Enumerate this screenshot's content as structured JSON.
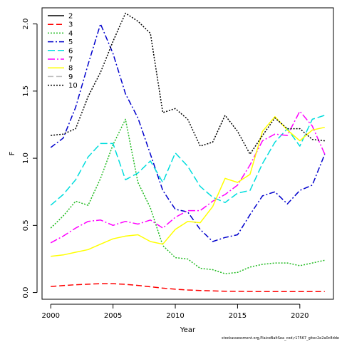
{
  "chart_data": {
    "type": "line",
    "title": "",
    "xlabel": "Year",
    "ylabel": "F",
    "xlim": [
      1999.3,
      2022.7
    ],
    "ylim": [
      -0.05,
      2.12
    ],
    "xticks": [
      2000,
      2005,
      2010,
      2015,
      2020
    ],
    "yticks": [
      0.0,
      0.5,
      1.0,
      1.5,
      2.0
    ],
    "ytick_labels": [
      "0.0",
      "0.5",
      "1.0",
      "1.5",
      "2.0"
    ],
    "grid": false,
    "legend_position": "top-left",
    "x": [
      2000,
      2001,
      2002,
      2003,
      2004,
      2005,
      2006,
      2007,
      2008,
      2009,
      2010,
      2011,
      2012,
      2013,
      2014,
      2015,
      2016,
      2017,
      2018,
      2019,
      2020,
      2021,
      2022
    ],
    "series": [
      {
        "name": "2",
        "color": "#000000",
        "dash": "solid",
        "values": [
          null,
          null,
          null,
          null,
          null,
          null,
          null,
          null,
          null,
          null,
          null,
          null,
          null,
          null,
          null,
          null,
          null,
          null,
          null,
          null,
          null,
          null,
          null
        ]
      },
      {
        "name": "3",
        "color": "#FF0000",
        "dash": "8,4",
        "values": [
          0.045,
          0.052,
          0.058,
          0.062,
          0.066,
          0.066,
          0.061,
          0.053,
          0.043,
          0.033,
          0.025,
          0.019,
          0.015,
          0.012,
          0.01,
          0.009,
          0.008,
          0.007,
          0.007,
          0.007,
          0.007,
          0.007,
          0.007
        ]
      },
      {
        "name": "4",
        "color": "#22BB22",
        "dash": "2,2",
        "values": [
          0.48,
          0.57,
          0.68,
          0.65,
          0.85,
          1.1,
          1.29,
          0.82,
          0.63,
          0.35,
          0.26,
          0.25,
          0.18,
          0.17,
          0.14,
          0.15,
          0.19,
          0.21,
          0.22,
          0.22,
          0.2,
          0.22,
          0.24
        ]
      },
      {
        "name": "5",
        "color": "#0000CC",
        "dash": "8,3,2,3",
        "values": [
          1.08,
          1.15,
          1.38,
          1.7,
          2.0,
          1.78,
          1.48,
          1.3,
          1.03,
          0.76,
          0.62,
          0.6,
          0.47,
          0.38,
          0.41,
          0.43,
          0.58,
          0.72,
          0.75,
          0.66,
          0.76,
          0.8,
          1.03
        ]
      },
      {
        "name": "6",
        "color": "#00DDDD",
        "dash": "10,4",
        "values": [
          0.65,
          0.73,
          0.84,
          1.01,
          1.11,
          1.11,
          0.84,
          0.89,
          0.98,
          0.82,
          1.04,
          0.94,
          0.79,
          0.71,
          0.67,
          0.74,
          0.76,
          0.96,
          1.12,
          1.22,
          1.09,
          1.29,
          1.32
        ]
      },
      {
        "name": "7",
        "color": "#FF00FF",
        "dash": "10,3,2,3",
        "values": [
          0.37,
          0.42,
          0.48,
          0.53,
          0.54,
          0.5,
          0.53,
          0.51,
          0.54,
          0.48,
          0.56,
          0.61,
          0.61,
          0.68,
          0.73,
          0.8,
          0.95,
          1.13,
          1.18,
          1.17,
          1.35,
          1.24,
          1.03
        ]
      },
      {
        "name": "8",
        "color": "#FFFF00",
        "dash": "solid",
        "values": [
          0.27,
          0.28,
          0.3,
          0.32,
          0.36,
          0.4,
          0.42,
          0.43,
          0.38,
          0.36,
          0.47,
          0.53,
          0.52,
          0.64,
          0.85,
          0.82,
          0.88,
          1.2,
          1.31,
          1.21,
          1.13,
          1.21,
          1.23
        ]
      },
      {
        "name": "9",
        "color": "#BBBBBB",
        "dash": "8,4",
        "values": [
          null,
          null,
          null,
          null,
          null,
          null,
          null,
          null,
          null,
          null,
          null,
          null,
          null,
          null,
          null,
          null,
          null,
          null,
          null,
          null,
          null,
          null,
          null
        ]
      },
      {
        "name": "10",
        "color": "#000000",
        "dash": "2,2",
        "values": [
          1.17,
          1.18,
          1.22,
          1.46,
          1.64,
          1.87,
          2.08,
          2.02,
          1.93,
          1.34,
          1.37,
          1.29,
          1.09,
          1.12,
          1.32,
          1.2,
          1.03,
          1.17,
          1.3,
          1.22,
          1.22,
          1.14,
          1.13
        ]
      }
    ]
  },
  "footer": "stockassessment.org,PlaiceBaltSea_cod,r17567_gitec2e2a0c8dde"
}
